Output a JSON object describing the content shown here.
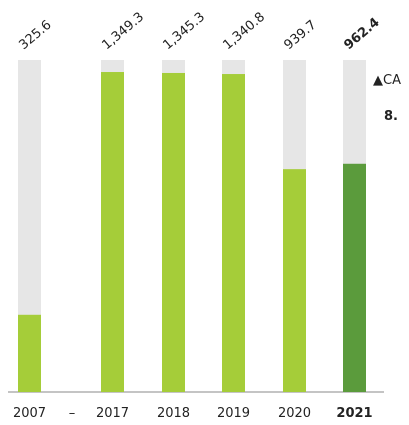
{
  "chart_data": {
    "type": "bar",
    "categories": [
      "2007",
      "–",
      "2017",
      "2018",
      "2019",
      "2020",
      "2021"
    ],
    "values": [
      325.6,
      null,
      1349.3,
      1345.3,
      1340.8,
      939.7,
      962.4
    ],
    "value_labels": [
      "325.6",
      null,
      "1,349.3",
      "1,345.3",
      "1,340.8",
      "939.7",
      "962.4"
    ],
    "colors": [
      "#a5cd39",
      null,
      "#a5cd39",
      "#a5cd39",
      "#a5cd39",
      "#a5cd39",
      "#5b9b3c"
    ],
    "highlight": [
      false,
      false,
      false,
      false,
      false,
      false,
      true
    ],
    "background_color": "#e6e6e6",
    "ylim": [
      0,
      1400
    ],
    "annotations": [
      "▲CA",
      "8."
    ],
    "annotation_color": "#ee7623"
  }
}
